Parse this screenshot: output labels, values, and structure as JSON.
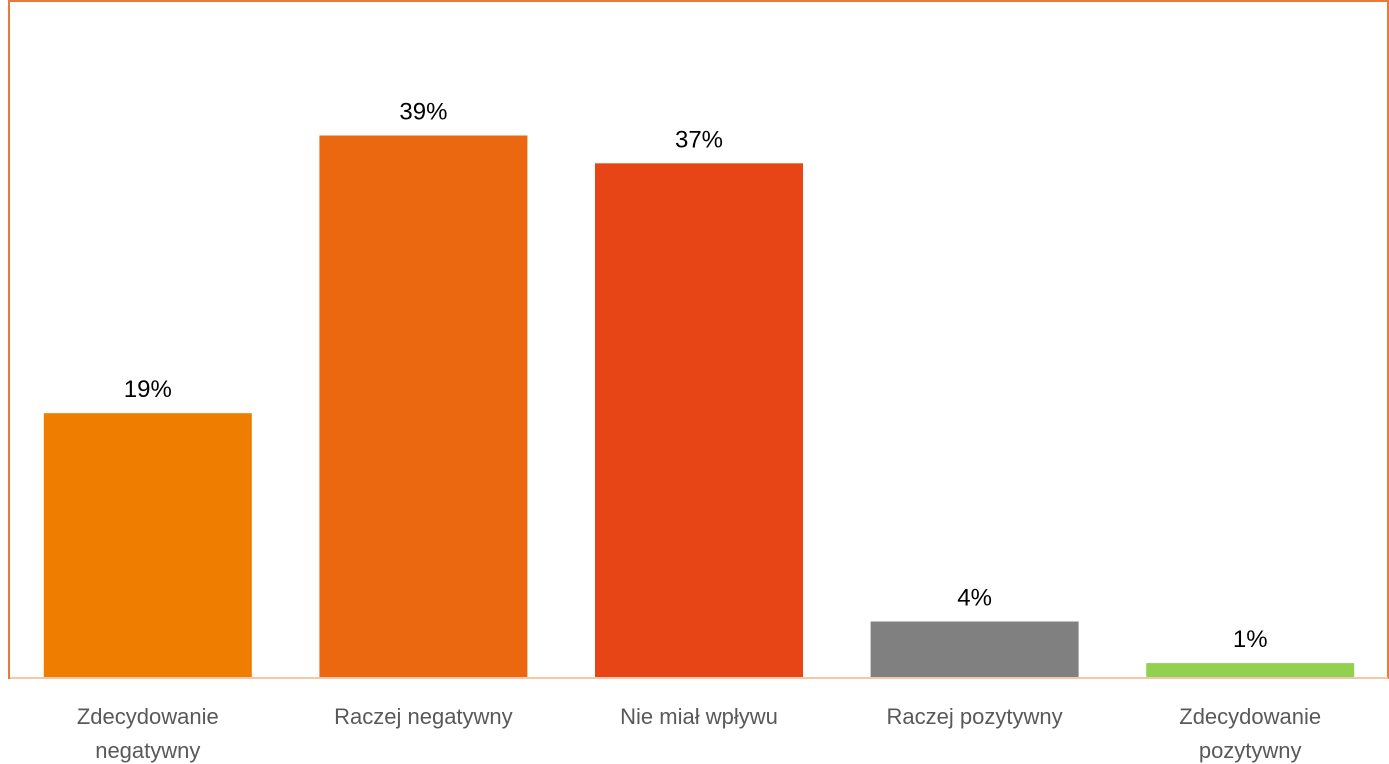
{
  "chart_data": {
    "type": "bar",
    "categories": [
      "Zdecydowanie negatywny",
      "Raczej negatywny",
      "Nie miał wpływu",
      "Raczej pozytywny",
      "Zdecydowanie pozytywny"
    ],
    "category_lines": [
      [
        "Zdecydowanie",
        "negatywny"
      ],
      [
        "Raczej negatywny"
      ],
      [
        "Nie miał wpływu"
      ],
      [
        "Raczej pozytywny"
      ],
      [
        "Zdecydowanie",
        "pozytywny"
      ]
    ],
    "values": [
      19,
      39,
      37,
      4,
      1
    ],
    "data_labels": [
      "19%",
      "39%",
      "37%",
      "4%",
      "1%"
    ],
    "bar_colors": [
      "#EF7D00",
      "#EB6811",
      "#E84516",
      "#808080",
      "#92D050"
    ],
    "frame_color": "#E97A3A",
    "axis_color": "#F2C8A8",
    "title": "",
    "xlabel": "",
    "ylabel": "",
    "ylim": [
      0,
      43
    ],
    "grid": false,
    "legend": "none"
  }
}
